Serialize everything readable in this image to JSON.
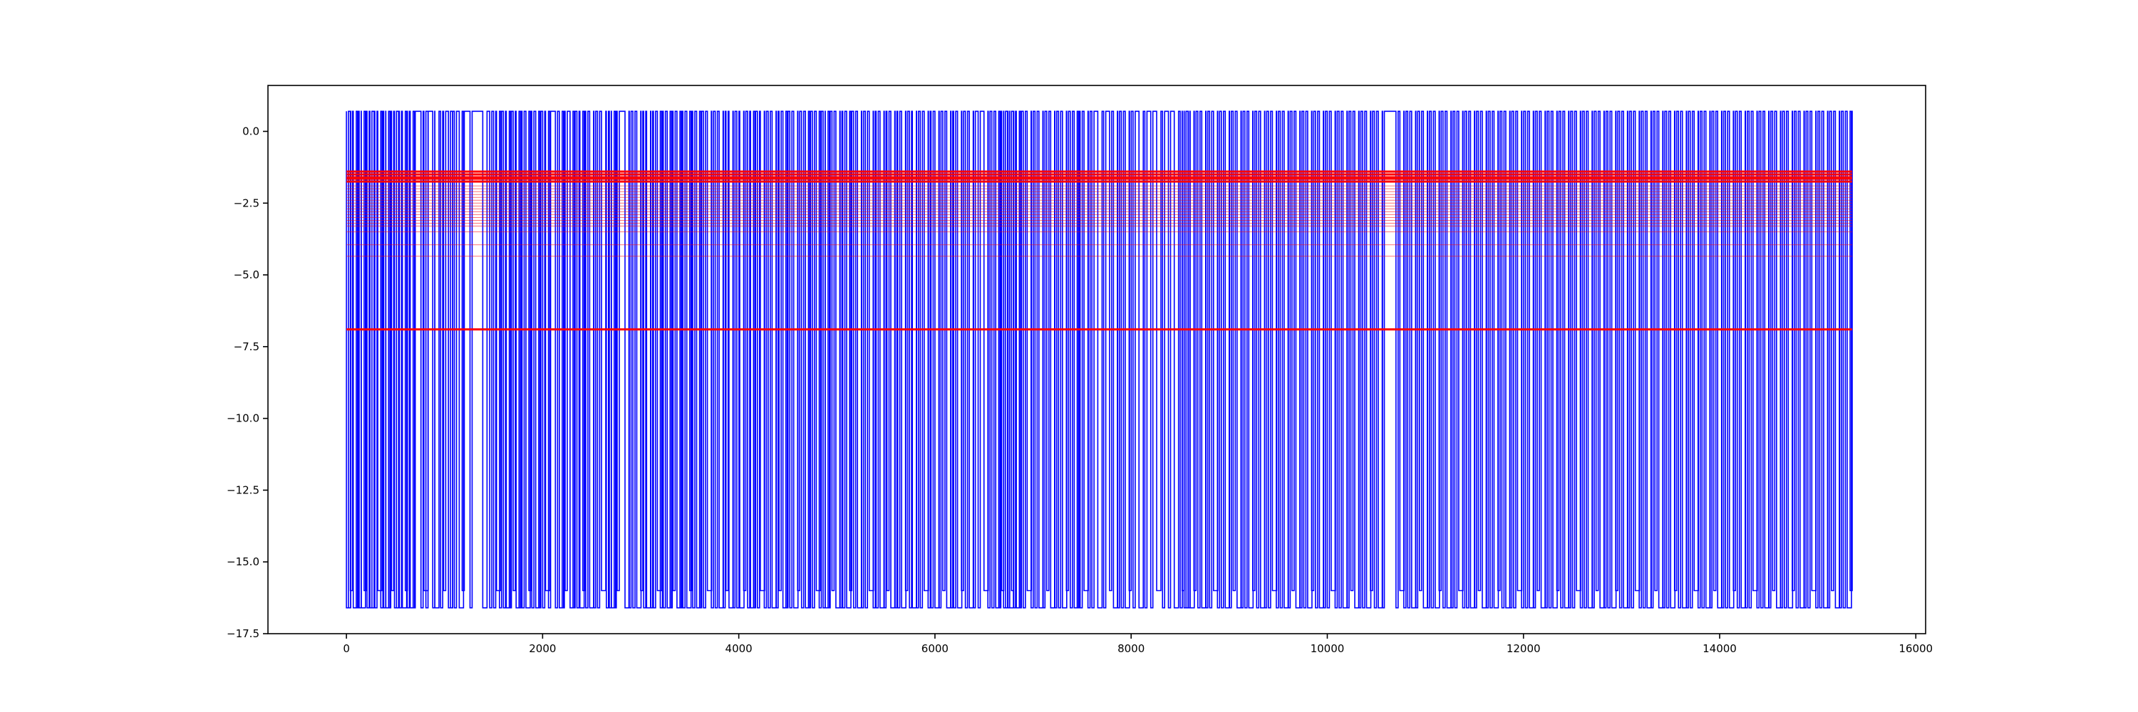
{
  "chart_data": {
    "type": "line",
    "title": "",
    "xlabel": "",
    "ylabel": "",
    "xlim": [
      -800,
      16100
    ],
    "ylim": [
      -17.5,
      1.6
    ],
    "x_ticks": [
      0,
      2000,
      4000,
      6000,
      8000,
      10000,
      12000,
      14000,
      16000
    ],
    "x_tick_labels": [
      "0",
      "2000",
      "4000",
      "6000",
      "8000",
      "10000",
      "12000",
      "14000",
      "16000"
    ],
    "y_ticks": [
      0.0,
      -2.5,
      -5.0,
      -7.5,
      -10.0,
      -12.5,
      -15.0,
      -17.5
    ],
    "y_tick_labels": [
      "0.0",
      "−2.5",
      "−5.0",
      "−7.5",
      "−10.0",
      "−12.5",
      "−15.0",
      "−17.5"
    ],
    "grid": false,
    "legend": "none",
    "series_signal": {
      "color": "#0000ff",
      "x_start": 0,
      "x_end": 15350,
      "high": 0.7,
      "low": -16.6,
      "low_alt": -16.0,
      "drop_positions": [
        0,
        20,
        40,
        70,
        100,
        130,
        150,
        180,
        210,
        240,
        260,
        290,
        320,
        350,
        380,
        400,
        430,
        460,
        490,
        510,
        540,
        570,
        600,
        620,
        650,
        680,
        760,
        790,
        810,
        880,
        900,
        960,
        990,
        1040,
        1060,
        1100,
        1150,
        1180,
        1260,
        1390,
        1460,
        1500,
        1530,
        1560,
        1600,
        1630,
        1660,
        1700,
        1730,
        1760,
        1790,
        1830,
        1860,
        1890,
        1930,
        1960,
        2000,
        2030,
        2060,
        2130,
        2170,
        2200,
        2230,
        2280,
        2310,
        2350,
        2380,
        2410,
        2440,
        2480,
        2520,
        2560,
        2600,
        2650,
        2680,
        2700,
        2730,
        2760,
        2840,
        2880,
        2920,
        2960,
        3000,
        3030,
        3060,
        3100,
        3130,
        3170,
        3200,
        3230,
        3270,
        3300,
        3330,
        3370,
        3400,
        3430,
        3470,
        3500,
        3530,
        3570,
        3600,
        3640,
        3680,
        3720,
        3760,
        3800,
        3840,
        3870,
        3900,
        3940,
        3980,
        4010,
        4050,
        4090,
        4120,
        4150,
        4190,
        4220,
        4260,
        4300,
        4340,
        4380,
        4410,
        4450,
        4480,
        4520,
        4560,
        4600,
        4640,
        4680,
        4710,
        4750,
        4790,
        4820,
        4860,
        4880,
        4910,
        4950,
        4990,
        5030,
        5060,
        5100,
        5130,
        5170,
        5210,
        5250,
        5290,
        5330,
        5370,
        5400,
        5440,
        5480,
        5510,
        5550,
        5590,
        5620,
        5660,
        5700,
        5740,
        5770,
        5810,
        5850,
        5890,
        5930,
        5960,
        6000,
        6040,
        6080,
        6120,
        6160,
        6190,
        6230,
        6270,
        6310,
        6350,
        6390,
        6440,
        6500,
        6540,
        6580,
        6620,
        6650,
        6680,
        6700,
        6720,
        6740,
        6760,
        6780,
        6800,
        6830,
        6860,
        6900,
        6940,
        6980,
        7020,
        7060,
        7100,
        7140,
        7180,
        7220,
        7260,
        7300,
        7340,
        7380,
        7420,
        7450,
        7480,
        7520,
        7560,
        7600,
        7660,
        7720,
        7780,
        7820,
        7860,
        7900,
        7940,
        7980,
        8020,
        8080,
        8140,
        8200,
        8260,
        8320,
        8380,
        8440,
        8500,
        8520,
        8540,
        8560,
        8580,
        8600,
        8640,
        8680,
        8720,
        8760,
        8800,
        8840,
        8880,
        8920,
        8960,
        9000,
        9040,
        9080,
        9120,
        9160,
        9200,
        9240,
        9280,
        9320,
        9360,
        9400,
        9440,
        9480,
        9520,
        9560,
        9600,
        9640,
        9680,
        9720,
        9760,
        9800,
        9840,
        9880,
        9920,
        9960,
        10000,
        10040,
        10080,
        10120,
        10160,
        10200,
        10240,
        10280,
        10320,
        10360,
        10400,
        10440,
        10480,
        10520,
        10560,
        10700,
        10740,
        10780,
        10820,
        10860,
        10900,
        10940,
        10980,
        11020,
        11060,
        11100,
        11140,
        11180,
        11220,
        11260,
        11300,
        11340,
        11380,
        11420,
        11460,
        11500,
        11540,
        11580,
        11620,
        11660,
        11700,
        11740,
        11780,
        11820,
        11860,
        11900,
        11940,
        11980,
        12020,
        12060,
        12100,
        12140,
        12180,
        12220,
        12260,
        12300,
        12340,
        12380,
        12420,
        12460,
        12500,
        12540,
        12580,
        12620,
        12660,
        12700,
        12740,
        12780,
        12820,
        12860,
        12900,
        12940,
        12980,
        13020,
        13060,
        13100,
        13140,
        13180,
        13220,
        13260,
        13300,
        13340,
        13380,
        13420,
        13460,
        13500,
        13540,
        13580,
        13620,
        13660,
        13700,
        13740,
        13780,
        13820,
        13860,
        13900,
        13940,
        13980,
        14020,
        14060,
        14100,
        14140,
        14180,
        14220,
        14260,
        14300,
        14340,
        14380,
        14420,
        14460,
        14500,
        14540,
        14580,
        14620,
        14660,
        14700,
        14740,
        14780,
        14820,
        14860,
        14900,
        14940,
        14980,
        15020,
        15060,
        15100,
        15140,
        15180,
        15220,
        15260,
        15300,
        15330
      ]
    },
    "series_levels": {
      "color": "#ff0000",
      "x_start": 0,
      "x_end": 15350,
      "heavy_levels": [
        -1.4,
        -1.5,
        -1.6,
        -1.65,
        -1.75,
        -6.9
      ],
      "light_levels": [
        -1.9,
        -2.0,
        -2.1,
        -2.2,
        -2.3,
        -2.4,
        -2.5,
        -2.6,
        -2.7,
        -2.8,
        -2.9,
        -3.0,
        -3.1,
        -3.2,
        -3.3,
        -3.5,
        -3.95,
        -4.35
      ]
    }
  }
}
